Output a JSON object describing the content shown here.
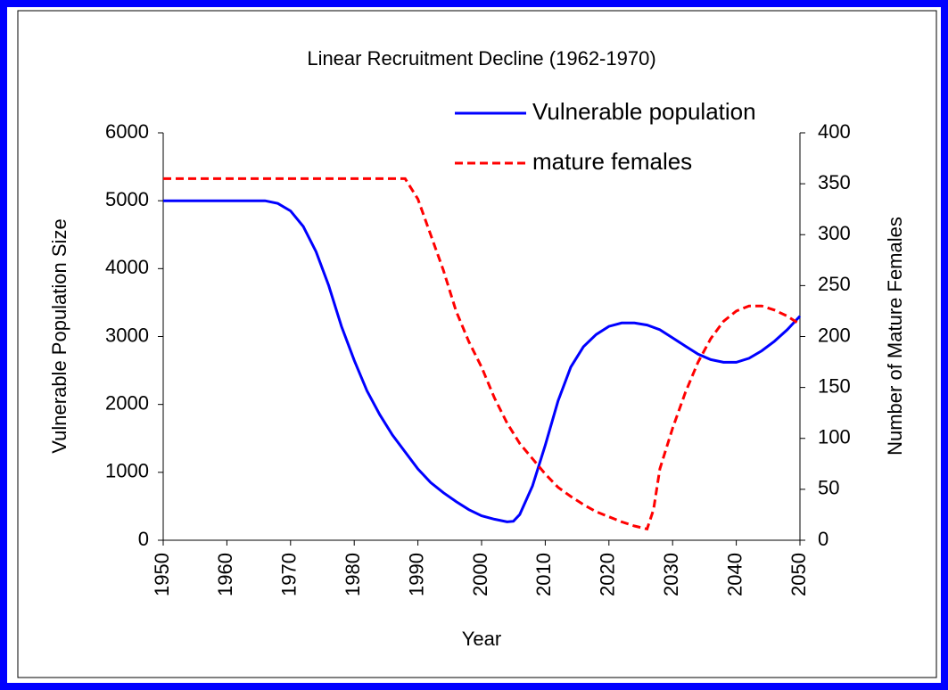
{
  "chart_data": {
    "type": "line",
    "title": "Linear Recruitment Decline (1962-1970)",
    "x_label": "Year",
    "y_label": "Vulnerable Population Size",
    "y2_label": "Number of Mature Females",
    "xlim": [
      1950,
      2050
    ],
    "xticks": [
      1950,
      1960,
      1970,
      1980,
      1990,
      2000,
      2010,
      2020,
      2030,
      2040,
      2050
    ],
    "ylim": [
      0,
      6000
    ],
    "yticks": [
      0,
      1000,
      2000,
      3000,
      4000,
      5000,
      6000
    ],
    "y2lim": [
      0,
      400
    ],
    "y2ticks": [
      0,
      50,
      100,
      150,
      200,
      250,
      300,
      350,
      400
    ],
    "legend": "top-right",
    "series": [
      {
        "name": "Vulnerable population",
        "color": "#0000ff",
        "dash": "solid",
        "x": [
          1950,
          1966,
          1968,
          1970,
          1972,
          1974,
          1976,
          1978,
          1980,
          1982,
          1984,
          1986,
          1988,
          1990,
          1992,
          1994,
          1996,
          1998,
          2000,
          2002,
          2004,
          2005,
          2006,
          2008,
          2010,
          2012,
          2014,
          2016,
          2018,
          2020,
          2022,
          2024,
          2026,
          2028,
          2030,
          2032,
          2034,
          2036,
          2038,
          2040,
          2042,
          2044,
          2046,
          2048,
          2050
        ],
        "values": [
          5000,
          5000,
          4960,
          4850,
          4620,
          4250,
          3750,
          3150,
          2650,
          2200,
          1850,
          1550,
          1300,
          1050,
          850,
          700,
          570,
          450,
          360,
          310,
          270,
          280,
          380,
          800,
          1400,
          2050,
          2550,
          2850,
          3030,
          3150,
          3200,
          3200,
          3170,
          3100,
          2980,
          2860,
          2740,
          2660,
          2620,
          2620,
          2680,
          2790,
          2930,
          3100,
          3300
        ]
      },
      {
        "name": "mature females",
        "color": "#ff0000",
        "dash": "dashed",
        "axis": "y2",
        "x": [
          1950,
          1988,
          1990,
          1992,
          1994,
          1996,
          1998,
          2000,
          2002,
          2004,
          2006,
          2008,
          2010,
          2012,
          2014,
          2016,
          2018,
          2020,
          2022,
          2024,
          2026,
          2027,
          2028,
          2030,
          2032,
          2034,
          2036,
          2038,
          2040,
          2042,
          2044,
          2046,
          2048,
          2050
        ],
        "values": [
          355,
          355,
          335,
          300,
          265,
          225,
          195,
          170,
          140,
          115,
          95,
          80,
          65,
          52,
          43,
          35,
          28,
          23,
          18,
          14,
          11,
          30,
          70,
          110,
          145,
          175,
          198,
          215,
          225,
          230,
          230,
          226,
          220,
          212
        ]
      }
    ]
  }
}
